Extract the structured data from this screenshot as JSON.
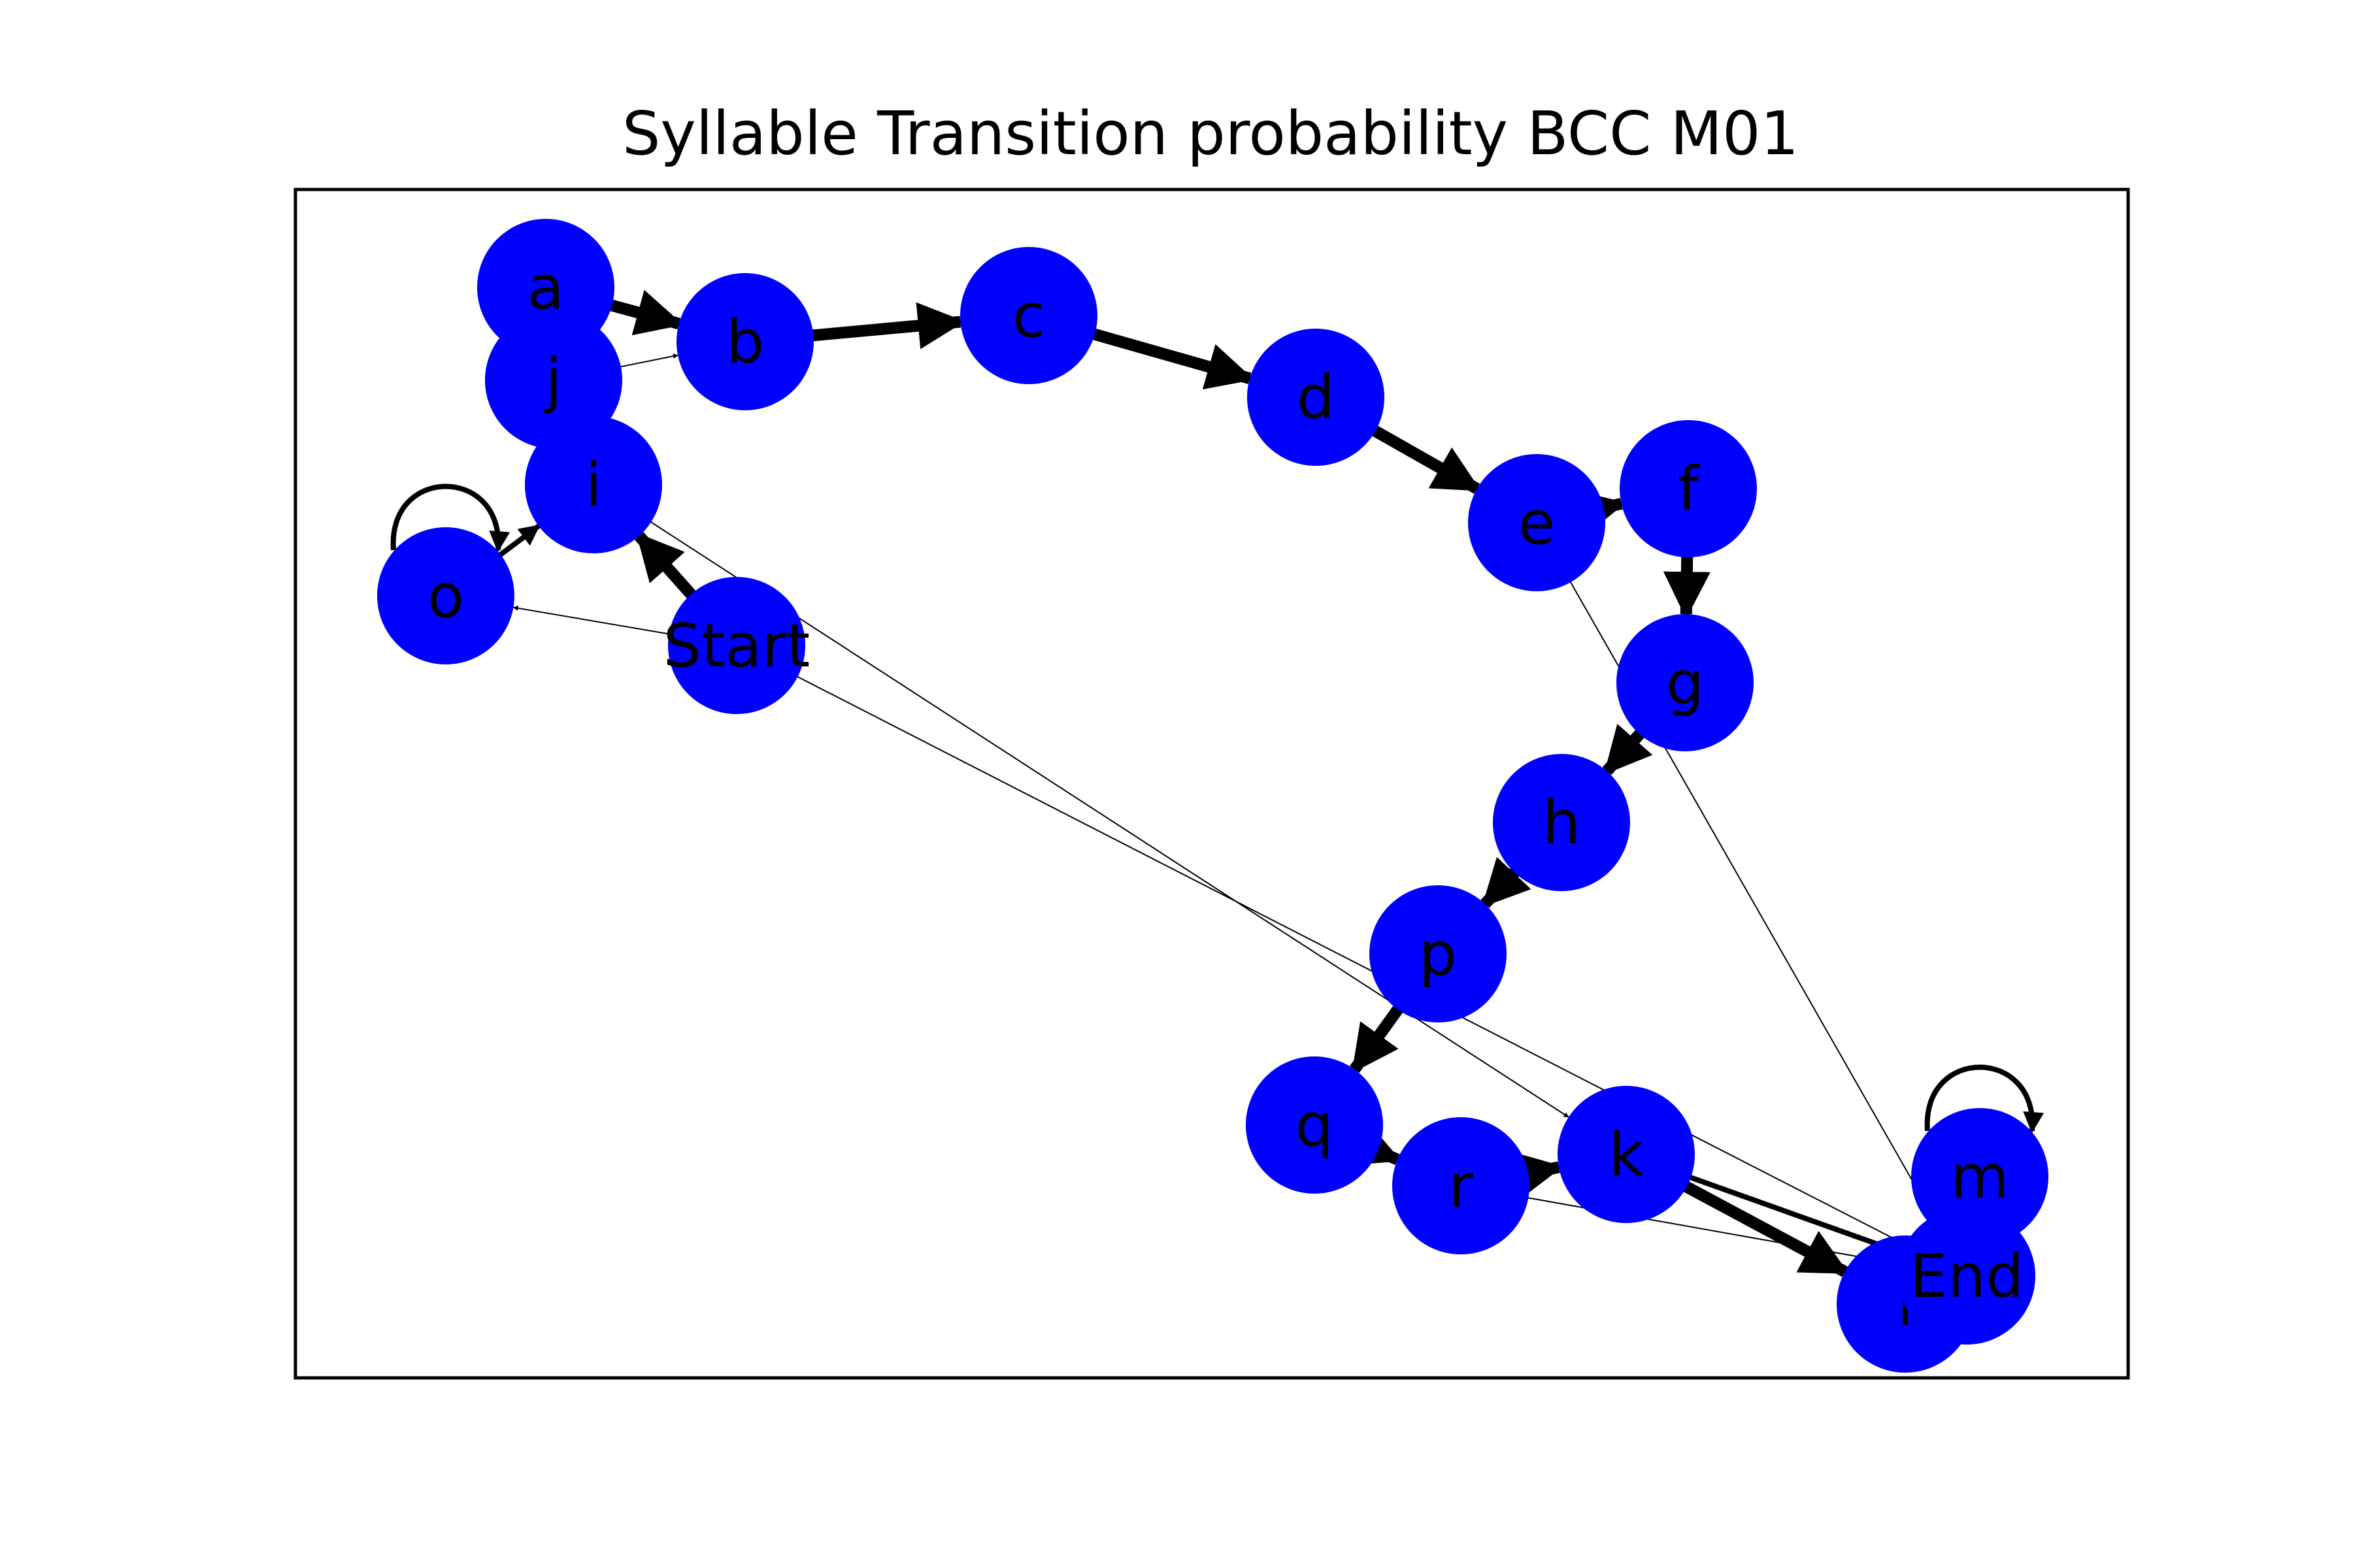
{
  "title": "Syllable Transition probability BCC M01",
  "colors": {
    "node_fill": "#0000ff",
    "edge": "#000000",
    "frame": "#000000",
    "background": "#ffffff"
  },
  "graph": {
    "directed": true,
    "nodes": [
      {
        "id": "a",
        "label": "a"
      },
      {
        "id": "b",
        "label": "b"
      },
      {
        "id": "c",
        "label": "c"
      },
      {
        "id": "d",
        "label": "d"
      },
      {
        "id": "e",
        "label": "e"
      },
      {
        "id": "f",
        "label": "f"
      },
      {
        "id": "g",
        "label": "g"
      },
      {
        "id": "h",
        "label": "h"
      },
      {
        "id": "i",
        "label": "i"
      },
      {
        "id": "j",
        "label": "j"
      },
      {
        "id": "k",
        "label": "k"
      },
      {
        "id": "l",
        "label": "l"
      },
      {
        "id": "m",
        "label": "m"
      },
      {
        "id": "o",
        "label": "o"
      },
      {
        "id": "p",
        "label": "p"
      },
      {
        "id": "q",
        "label": "q"
      },
      {
        "id": "r",
        "label": "r"
      },
      {
        "id": "Start",
        "label": "Start"
      },
      {
        "id": "End",
        "label": "End"
      }
    ],
    "edges": [
      {
        "source": "a",
        "target": "b",
        "weight": "thick"
      },
      {
        "source": "b",
        "target": "c",
        "weight": "thick"
      },
      {
        "source": "c",
        "target": "d",
        "weight": "thick"
      },
      {
        "source": "d",
        "target": "e",
        "weight": "thick"
      },
      {
        "source": "e",
        "target": "f",
        "weight": "thick"
      },
      {
        "source": "f",
        "target": "g",
        "weight": "thick"
      },
      {
        "source": "g",
        "target": "h",
        "weight": "thick"
      },
      {
        "source": "h",
        "target": "p",
        "weight": "thick"
      },
      {
        "source": "p",
        "target": "q",
        "weight": "thick"
      },
      {
        "source": "q",
        "target": "r",
        "weight": "thick"
      },
      {
        "source": "r",
        "target": "k",
        "weight": "thick"
      },
      {
        "source": "k",
        "target": "l",
        "weight": "thick"
      },
      {
        "source": "Start",
        "target": "i",
        "weight": "thick"
      },
      {
        "source": "o",
        "target": "i",
        "weight": "medium"
      },
      {
        "source": "o",
        "target": "o",
        "weight": "medium"
      },
      {
        "source": "m",
        "target": "m",
        "weight": "medium"
      },
      {
        "source": "j",
        "target": "b",
        "weight": "thin"
      },
      {
        "source": "Start",
        "target": "o",
        "weight": "thin"
      },
      {
        "source": "i",
        "target": "k",
        "weight": "thin"
      },
      {
        "source": "Start",
        "target": "End",
        "weight": "thin"
      },
      {
        "source": "e",
        "target": "End",
        "weight": "thin"
      },
      {
        "source": "r",
        "target": "End",
        "weight": "thin"
      },
      {
        "source": "k",
        "target": "End",
        "weight": "medium"
      }
    ]
  }
}
